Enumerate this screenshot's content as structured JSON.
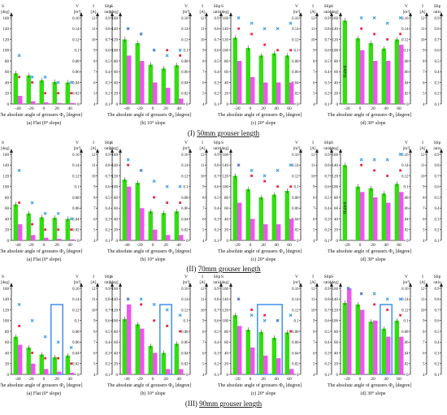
{
  "axis_text": {
    "s_label": "S",
    "s_unit": "[deg]",
    "v_label": "V",
    "v_unit": "[m³]",
    "i_label": "I",
    "i_unit": "[A]",
    "slip_label": "Slip",
    "slip_unit": "ratio",
    "x_title": "The absolute angle of grousers",
    "x_symbol": "Φ",
    "x_subscript": "d",
    "x_unit": "[degree]",
    "s_ticks": [
      0,
      20,
      40,
      60,
      80,
      100,
      120,
      140,
      160
    ],
    "v_ticks": [
      0,
      0.02,
      0.04,
      0.06,
      0.08,
      0.1,
      0.12,
      0.14,
      0.16
    ],
    "i_ticks": [
      4,
      5,
      6,
      7,
      8,
      9,
      10,
      11,
      12
    ],
    "slip_ticks": [
      0.1,
      0.2,
      0.3,
      0.4,
      0.5,
      0.6,
      0.7,
      0.8,
      0.9
    ]
  },
  "colors": {
    "s_bar": "#33dd11",
    "v_bar": "#ee55ee",
    "i_marker": "#ee2244",
    "slip_marker": "#3399ee",
    "highlight_box": "#3388ee"
  },
  "rows": [
    {
      "title_prefix": "(I)",
      "title_value": "50mm",
      "title_suffix": "grouser length"
    },
    {
      "title_prefix": "(II)",
      "title_value": "70mm",
      "title_suffix": "grouser length"
    },
    {
      "title_prefix": "(III)",
      "title_value": "90mm",
      "title_suffix": "grouser length"
    }
  ],
  "chart_data": [
    {
      "type": "bar",
      "row": 0,
      "col": 0,
      "caption": "(a) Flat (0° slope)",
      "categories": [
        -40,
        -20,
        0,
        20,
        40
      ],
      "s": [
        57,
        53,
        44,
        41,
        40
      ],
      "v": [
        0.015,
        0.005,
        0.003,
        0.002,
        0.002
      ],
      "i": [
        6.5,
        6.0,
        5.0,
        5.0,
        5.0
      ],
      "slip": [
        0.55,
        0.35,
        0.35,
        0.3,
        0.3
      ],
      "halted": false,
      "highlight": null
    },
    {
      "type": "bar",
      "row": 0,
      "col": 1,
      "caption": "(b) 10° slope",
      "categories": [
        -40,
        -20,
        0,
        20,
        40
      ],
      "s": [
        120,
        113,
        73,
        66,
        72
      ],
      "v": [
        0.09,
        0.08,
        0.04,
        0.03,
        0.01
      ],
      "i": [
        11.0,
        10.5,
        9.0,
        9.0,
        8.5
      ],
      "slip": [
        0.8,
        0.75,
        0.6,
        0.55,
        0.6
      ],
      "halted": false,
      "highlight": null
    },
    {
      "type": "bar",
      "row": 0,
      "col": 2,
      "caption": "(c) 20° slope",
      "categories": [
        -20,
        0,
        20,
        40,
        60
      ],
      "s": [
        123,
        104,
        90,
        94,
        90
      ],
      "v": [
        0.08,
        0.05,
        0.04,
        0.04,
        0.04
      ],
      "i": [
        11.0,
        10.5,
        9.5,
        9.0,
        9.0
      ],
      "slip": [
        0.9,
        0.85,
        0.8,
        0.8,
        0.85
      ],
      "halted": false,
      "highlight": null
    },
    {
      "type": "bar",
      "row": 0,
      "col": 3,
      "caption": "(d) 30° slope",
      "categories": [
        -20,
        0,
        20,
        40,
        60
      ],
      "s": [
        155,
        122,
        113,
        103,
        120
      ],
      "v": [
        null,
        0.1,
        0.08,
        0.08,
        0.11
      ],
      "i": [
        null,
        11.0,
        10.5,
        10.0,
        10.5
      ],
      "slip": [
        null,
        0.9,
        0.9,
        0.85,
        0.9
      ],
      "halted": true,
      "halted_label": "Halted",
      "highlight": null
    },
    {
      "type": "bar",
      "row": 1,
      "col": 0,
      "caption": "(a) Flat (0° slope)",
      "categories": [
        -40,
        -20,
        0,
        20,
        40
      ],
      "s": [
        67,
        50,
        43,
        42,
        40
      ],
      "v": [
        0.03,
        0.01,
        0.005,
        0.003,
        0.002
      ],
      "i": [
        7.5,
        5.5,
        5.0,
        5.0,
        5.0
      ],
      "slip": [
        0.75,
        0.45,
        0.35,
        0.35,
        0.3
      ],
      "halted": false,
      "highlight": null
    },
    {
      "type": "bar",
      "row": 1,
      "col": 1,
      "caption": "(b) 10° slope",
      "categories": [
        -40,
        -20,
        0,
        20,
        40
      ],
      "s": [
        113,
        107,
        54,
        51,
        54
      ],
      "v": [
        0.1,
        0.06,
        0.02,
        0.01,
        0.01
      ],
      "i": [
        11.0,
        10.5,
        8.0,
        7.5,
        7.5
      ],
      "slip": [
        0.85,
        0.75,
        0.65,
        0.6,
        0.6
      ],
      "halted": false,
      "highlight": null
    },
    {
      "type": "bar",
      "row": 1,
      "col": 2,
      "caption": "(c) 20° slope",
      "categories": [
        -20,
        0,
        20,
        40,
        60
      ],
      "s": [
        120,
        95,
        80,
        85,
        92
      ],
      "v": [
        0.07,
        0.04,
        0.03,
        0.03,
        0.04
      ],
      "i": [
        11.0,
        10.0,
        9.5,
        9.0,
        9.0
      ],
      "slip": [
        0.8,
        0.75,
        0.7,
        0.75,
        0.8
      ],
      "halted": false,
      "highlight": null
    },
    {
      "type": "bar",
      "row": 1,
      "col": 3,
      "caption": "(d) 30° slope",
      "categories": [
        -20,
        0,
        20,
        40,
        60
      ],
      "s": [
        140,
        100,
        97,
        87,
        105
      ],
      "v": [
        null,
        0.09,
        0.08,
        0.07,
        0.09
      ],
      "i": [
        null,
        11.0,
        10.5,
        10.0,
        10.5
      ],
      "slip": [
        null,
        0.85,
        0.85,
        0.85,
        0.9
      ],
      "halted": true,
      "halted_label": "Halted",
      "highlight": null
    },
    {
      "type": "bar",
      "row": 2,
      "col": 0,
      "caption": "(a) Flat (0° slope)",
      "categories": [
        -40,
        -20,
        0,
        20,
        40
      ],
      "s": [
        70,
        50,
        37,
        32,
        35
      ],
      "v": [
        0.055,
        0.02,
        0.01,
        0.005,
        0.003
      ],
      "i": [
        8.5,
        6.0,
        5.5,
        5.5,
        5.0
      ],
      "slip": [
        0.75,
        0.6,
        0.45,
        0.4,
        0.35
      ],
      "halted": false,
      "highlight": [
        20,
        20
      ]
    },
    {
      "type": "bar",
      "row": 2,
      "col": 1,
      "caption": "(b) 10° slope",
      "categories": [
        -40,
        -20,
        0,
        20,
        40
      ],
      "s": [
        103,
        93,
        53,
        40,
        57
      ],
      "v": [
        0.13,
        0.085,
        0.04,
        0.01,
        0.01
      ],
      "i": [
        11.0,
        10.5,
        9.0,
        8.5,
        8.0
      ],
      "slip": [
        0.8,
        0.8,
        0.75,
        0.7,
        0.65
      ],
      "halted": false,
      "highlight": [
        20,
        20
      ]
    },
    {
      "type": "bar",
      "row": 2,
      "col": 2,
      "caption": "(c) 20° slope",
      "categories": [
        -20,
        0,
        20,
        40,
        60
      ],
      "s": [
        110,
        83,
        79,
        68,
        78
      ],
      "v": [
        0.09,
        0.05,
        0.035,
        0.03,
        0.01
      ],
      "i": [
        11.0,
        10.0,
        9.5,
        9.0,
        8.0
      ],
      "slip": [
        0.8,
        0.65,
        0.6,
        0.6,
        0.65
      ],
      "halted": false,
      "highlight": [
        20,
        40
      ]
    },
    {
      "type": "bar",
      "row": 2,
      "col": 3,
      "caption": "(d) 30° slope",
      "categories": [
        -20,
        0,
        20,
        40,
        60
      ],
      "s": [
        133,
        130,
        98,
        85,
        100
      ],
      "v": [
        0.16,
        0.12,
        0.1,
        0.07,
        0.07
      ],
      "i": [
        12.0,
        11.5,
        10.5,
        10.0,
        9.5
      ],
      "slip": [
        0.9,
        0.85,
        0.85,
        0.8,
        0.8
      ],
      "halted": false,
      "highlight": [
        40,
        40
      ]
    }
  ]
}
